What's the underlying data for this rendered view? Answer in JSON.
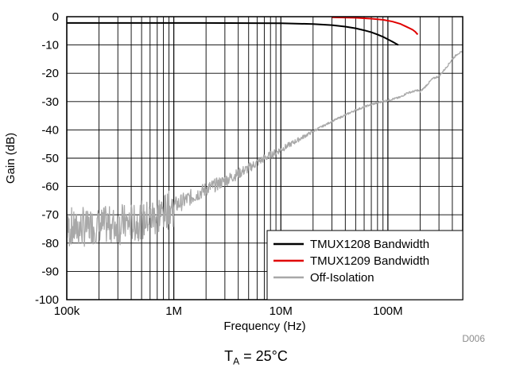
{
  "chart_data": {
    "type": "line",
    "xlabel": "Frequency (Hz)",
    "ylabel": "Gain (dB)",
    "x_scale": "log",
    "xlim": [
      100000,
      500000000
    ],
    "ylim": [
      -100,
      0
    ],
    "x_ticks": [
      {
        "value": 100000,
        "label": "100k"
      },
      {
        "value": 1000000,
        "label": "1M"
      },
      {
        "value": 10000000,
        "label": "10M"
      },
      {
        "value": 100000000,
        "label": "100M"
      }
    ],
    "y_ticks": [
      {
        "value": 0,
        "label": "0"
      },
      {
        "value": -10,
        "label": "-10"
      },
      {
        "value": -20,
        "label": "-20"
      },
      {
        "value": -30,
        "label": "-30"
      },
      {
        "value": -40,
        "label": "-40"
      },
      {
        "value": -50,
        "label": "-50"
      },
      {
        "value": -60,
        "label": "-60"
      },
      {
        "value": -70,
        "label": "-70"
      },
      {
        "value": -80,
        "label": "-80"
      },
      {
        "value": -90,
        "label": "-90"
      },
      {
        "value": -100,
        "label": "-100"
      }
    ],
    "grid": true,
    "legend_position": "bottom-right",
    "series": [
      {
        "name": "TMUX1208 Bandwidth",
        "color": "#000000",
        "x": [
          100000,
          1000000,
          10000000,
          20000000,
          30000000,
          40000000,
          50000000,
          60000000,
          70000000,
          80000000,
          90000000,
          100000000,
          110000000,
          125000000
        ],
        "y": [
          -2.2,
          -2.2,
          -2.3,
          -2.6,
          -3.0,
          -3.5,
          -4.1,
          -4.8,
          -5.5,
          -6.3,
          -7.1,
          -8.0,
          -8.8,
          -10.0
        ]
      },
      {
        "name": "TMUX1209 Bandwidth",
        "color": "#e00000",
        "x": [
          30000000,
          50000000,
          70000000,
          90000000,
          110000000,
          130000000,
          150000000,
          160000000,
          170000000,
          180000000,
          190000000
        ],
        "y": [
          -0.2,
          -0.4,
          -0.7,
          -1.1,
          -1.7,
          -2.5,
          -3.6,
          -4.1,
          -4.6,
          -5.3,
          -6.3
        ]
      },
      {
        "name": "Off-Isolation",
        "color": "#a8a8a8",
        "x": [
          100000,
          150000,
          200000,
          300000,
          500000,
          700000,
          1000000,
          2000000,
          3000000,
          5000000,
          7000000,
          10000000,
          20000000,
          30000000,
          50000000,
          70000000,
          100000000,
          130000000,
          150000000,
          170000000,
          190000000,
          200000000,
          220000000,
          260000000,
          300000000,
          350000000,
          400000000,
          450000000,
          500000000
        ],
        "y": [
          -75,
          -74.5,
          -74,
          -73.5,
          -72.5,
          -70,
          -67,
          -61,
          -58,
          -53.5,
          -50,
          -47,
          -40.5,
          -37,
          -33,
          -31,
          -29.5,
          -28.5,
          -27,
          -26.5,
          -26,
          -26.5,
          -25,
          -22,
          -21,
          -18,
          -15,
          -13,
          -12.5
        ],
        "noise_below_hz": 1000000,
        "noise_amplitude_db": 8
      }
    ]
  },
  "watermark": "D006",
  "caption": {
    "prefix": "T",
    "subscript": "A",
    "suffix": " = 25°C"
  }
}
